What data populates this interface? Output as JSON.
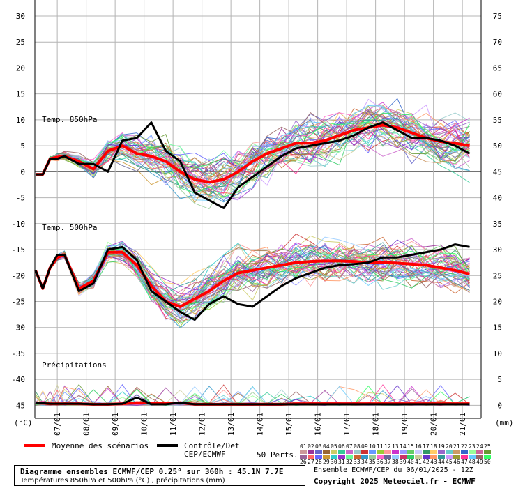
{
  "chart_data": {
    "type": "line",
    "left_axis": {
      "unit_label": "(°C)",
      "ticks": [
        30,
        25,
        20,
        15,
        10,
        5,
        0,
        -5,
        -10,
        -15,
        -20,
        -25,
        -30,
        -35,
        -40,
        -45
      ]
    },
    "right_axis": {
      "unit_label": "(mm)",
      "ticks": [
        75,
        70,
        65,
        60,
        55,
        50,
        45,
        40,
        35,
        30,
        25,
        20,
        15,
        10,
        5,
        0
      ]
    },
    "x_ticks": [
      "07/01",
      "08/01",
      "09/01",
      "10/01",
      "11/01",
      "12/01",
      "13/01",
      "14/01",
      "15/01",
      "16/01",
      "17/01",
      "18/01",
      "19/01",
      "20/01",
      "21/01"
    ],
    "panels": {
      "t850": {
        "label": "Temp. 850hPa"
      },
      "t500": {
        "label": "Temp. 500hPa"
      },
      "precip": {
        "label": "Précipitations"
      }
    },
    "x_days": [
      0,
      0.25,
      0.5,
      0.75,
      1,
      1.5,
      2,
      2.5,
      3,
      3.5,
      4,
      4.5,
      5,
      5.5,
      6,
      6.5,
      7,
      7.5,
      8,
      8.5,
      9,
      9.5,
      10,
      10.5,
      11,
      11.5,
      12,
      12.5,
      13,
      13.5,
      14,
      14.5,
      15
    ],
    "series": [
      {
        "name": "Moyenne des scénarios",
        "role": "mean",
        "color": "#ff0000",
        "t850": [
          -0.5,
          -0.5,
          2.5,
          2.8,
          3,
          2,
          0.5,
          4,
          5,
          3.5,
          3,
          2,
          0,
          -1.5,
          -2,
          -1.5,
          0,
          2,
          3.5,
          4.5,
          5.5,
          5.5,
          6,
          7,
          8,
          8.5,
          9,
          8.5,
          7.5,
          6.5,
          5.8,
          5.5,
          5
        ],
        "t500": [
          -19,
          -22.5,
          -18.5,
          -16.5,
          -16,
          -22.5,
          -21,
          -15.5,
          -15.5,
          -18,
          -22,
          -25,
          -26,
          -24.5,
          -23,
          -21,
          -19.5,
          -19,
          -18.5,
          -18,
          -17.5,
          -17.3,
          -17.2,
          -17.2,
          -17.3,
          -17.5,
          -17.5,
          -17.6,
          -17.8,
          -18,
          -18.5,
          -19,
          -19.7
        ],
        "precip": [
          0.5,
          0.4,
          0.3,
          0.3,
          0.3,
          0.3,
          0.2,
          0.2,
          0.3,
          0.5,
          0.4,
          0.3,
          0.5,
          0.2,
          0.2,
          0.2,
          0.2,
          0.2,
          0.2,
          0.2,
          0.3,
          0.3,
          0.3,
          0.3,
          0.3,
          0.3,
          0.3,
          0.3,
          0.3,
          0.3,
          0.3,
          0.3,
          0.3
        ]
      },
      {
        "name": "Contrôle/Det CEP/ECMWF",
        "role": "control",
        "color": "#000000",
        "t850": [
          -0.5,
          -0.5,
          2.5,
          2.5,
          3,
          1.5,
          1.5,
          0,
          6,
          6.5,
          9.5,
          4,
          2,
          -4,
          -5.5,
          -7,
          -3,
          -1,
          1,
          3,
          4.5,
          5,
          5.5,
          6,
          7,
          8.5,
          9.5,
          8,
          6.5,
          6.5,
          6,
          5,
          3.5
        ],
        "t500": [
          -19,
          -22.5,
          -18.5,
          -16,
          -16,
          -23,
          -21.5,
          -15,
          -14.5,
          -17,
          -23,
          -25,
          -27,
          -28.5,
          -25.5,
          -24,
          -25.5,
          -26,
          -24,
          -22,
          -20.5,
          -19.5,
          -18.5,
          -18,
          -17.8,
          -17.5,
          -16.5,
          -16.5,
          -16,
          -15.5,
          -15,
          -14,
          -14.5
        ],
        "precip": [
          0.5,
          0.4,
          0.3,
          0.3,
          0.3,
          0.3,
          0.2,
          0.2,
          0.3,
          1.5,
          0.2,
          0.2,
          0.5,
          0.2,
          0.2,
          0.2,
          0.2,
          0.2,
          0.2,
          0.2,
          0.2,
          0.2,
          0.2,
          0.2,
          0.2,
          0.2,
          0.2,
          0.2,
          0.2,
          0.2,
          0.2,
          0.2,
          0.2
        ]
      }
    ],
    "legend": {
      "mean_label": "Moyenne des scénarios",
      "control_label_1": "Contrôle/Det",
      "control_label_2": "CEP/ECMWF",
      "perts_label": "50 Perts.",
      "pert_numbers_row1": [
        "01",
        "02",
        "03",
        "04",
        "05",
        "06",
        "07",
        "08",
        "09",
        "10",
        "11",
        "12",
        "13",
        "14",
        "15",
        "16",
        "17",
        "18",
        "19",
        "20",
        "21",
        "22",
        "23",
        "24",
        "25"
      ],
      "pert_numbers_row2": [
        "26",
        "27",
        "28",
        "29",
        "30",
        "31",
        "32",
        "33",
        "34",
        "35",
        "36",
        "37",
        "38",
        "39",
        "40",
        "41",
        "42",
        "43",
        "44",
        "45",
        "46",
        "47",
        "48",
        "49",
        "50"
      ],
      "pert_colors": [
        "#cc9999",
        "#993399",
        "#6666cc",
        "#996633",
        "#cccc66",
        "#33cc99",
        "#cc66cc",
        "#99cccc",
        "#cc3333",
        "#6699ff",
        "#99cc33",
        "#ff9999",
        "#cc33cc",
        "#9999ff",
        "#66cc66",
        "#ccccff",
        "#339966",
        "#ffcc66",
        "#9966cc",
        "#66cccc",
        "#cc9966",
        "#3366cc",
        "#99ff99",
        "#cc6699",
        "#669933",
        "#996699",
        "#ff6666",
        "#6666ff",
        "#cc9933",
        "#33cccc",
        "#9933cc",
        "#66ff99",
        "#cc6633",
        "#3399cc",
        "#99cc99",
        "#ff66cc",
        "#666699",
        "#99ccff",
        "#cc3366",
        "#33cc66",
        "#cccc99",
        "#6633cc",
        "#ff9966",
        "#339999",
        "#cc99ff",
        "#999933",
        "#ff3399",
        "#66ccff",
        "#996666",
        "#33ff66"
      ]
    }
  },
  "footer": {
    "title": "Diagramme ensembles ECMWF/CEP 0.25° sur 360h : 45.1N 7.7E",
    "subtitle": "Températures 850hPa et 500hPa (°C) , précipitations (mm)",
    "ensemble_info": "Ensemble ECMWF/CEP du 06/01/2025 - 12Z",
    "copyright": "Copyright 2025 Meteociel.fr - ECMWF"
  }
}
